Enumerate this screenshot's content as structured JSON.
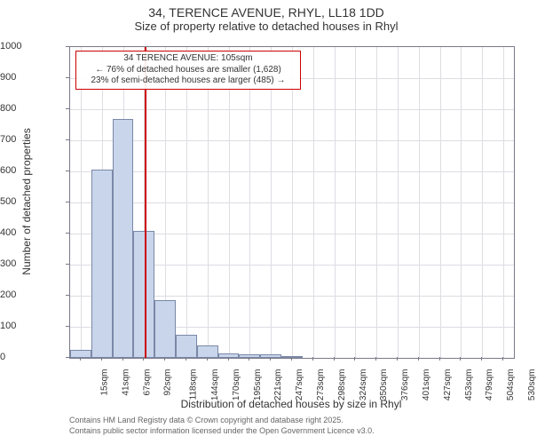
{
  "title": {
    "main": "34, TERENCE AVENUE, RHYL, LL18 1DD",
    "sub": "Size of property relative to detached houses in Rhyl"
  },
  "chart": {
    "type": "histogram",
    "bar_fill": "#c9d5ea",
    "bar_stroke": "#7a88a8",
    "background": "#ffffff",
    "grid_color": "#dddde3",
    "axis_color": "#7a7a8a",
    "ylim": [
      0,
      1000
    ],
    "ytick_step": 100,
    "x_categories": [
      "15sqm",
      "41sqm",
      "67sqm",
      "92sqm",
      "118sqm",
      "144sqm",
      "170sqm",
      "195sqm",
      "221sqm",
      "247sqm",
      "273sqm",
      "298sqm",
      "324sqm",
      "350sqm",
      "376sqm",
      "401sqm",
      "427sqm",
      "453sqm",
      "479sqm",
      "504sqm",
      "530sqm"
    ],
    "values": [
      25,
      605,
      770,
      410,
      185,
      75,
      40,
      15,
      12,
      12,
      6,
      0,
      0,
      0,
      0,
      0,
      0,
      0,
      0,
      0,
      0
    ],
    "marker": {
      "color": "#cc0000",
      "x_position": 102,
      "annotation": {
        "line1": "34 TERENCE AVENUE: 105sqm",
        "line2": "← 76% of detached houses are smaller (1,628)",
        "line3": "23% of semi-detached houses are larger (485) →"
      }
    },
    "y_axis_title": "Number of detached properties",
    "x_axis_title": "Distribution of detached houses by size in Rhyl"
  },
  "footer": {
    "line1": "Contains HM Land Registry data © Crown copyright and database right 2025.",
    "line2": "Contains public sector information licensed under the Open Government Licence v3.0."
  }
}
